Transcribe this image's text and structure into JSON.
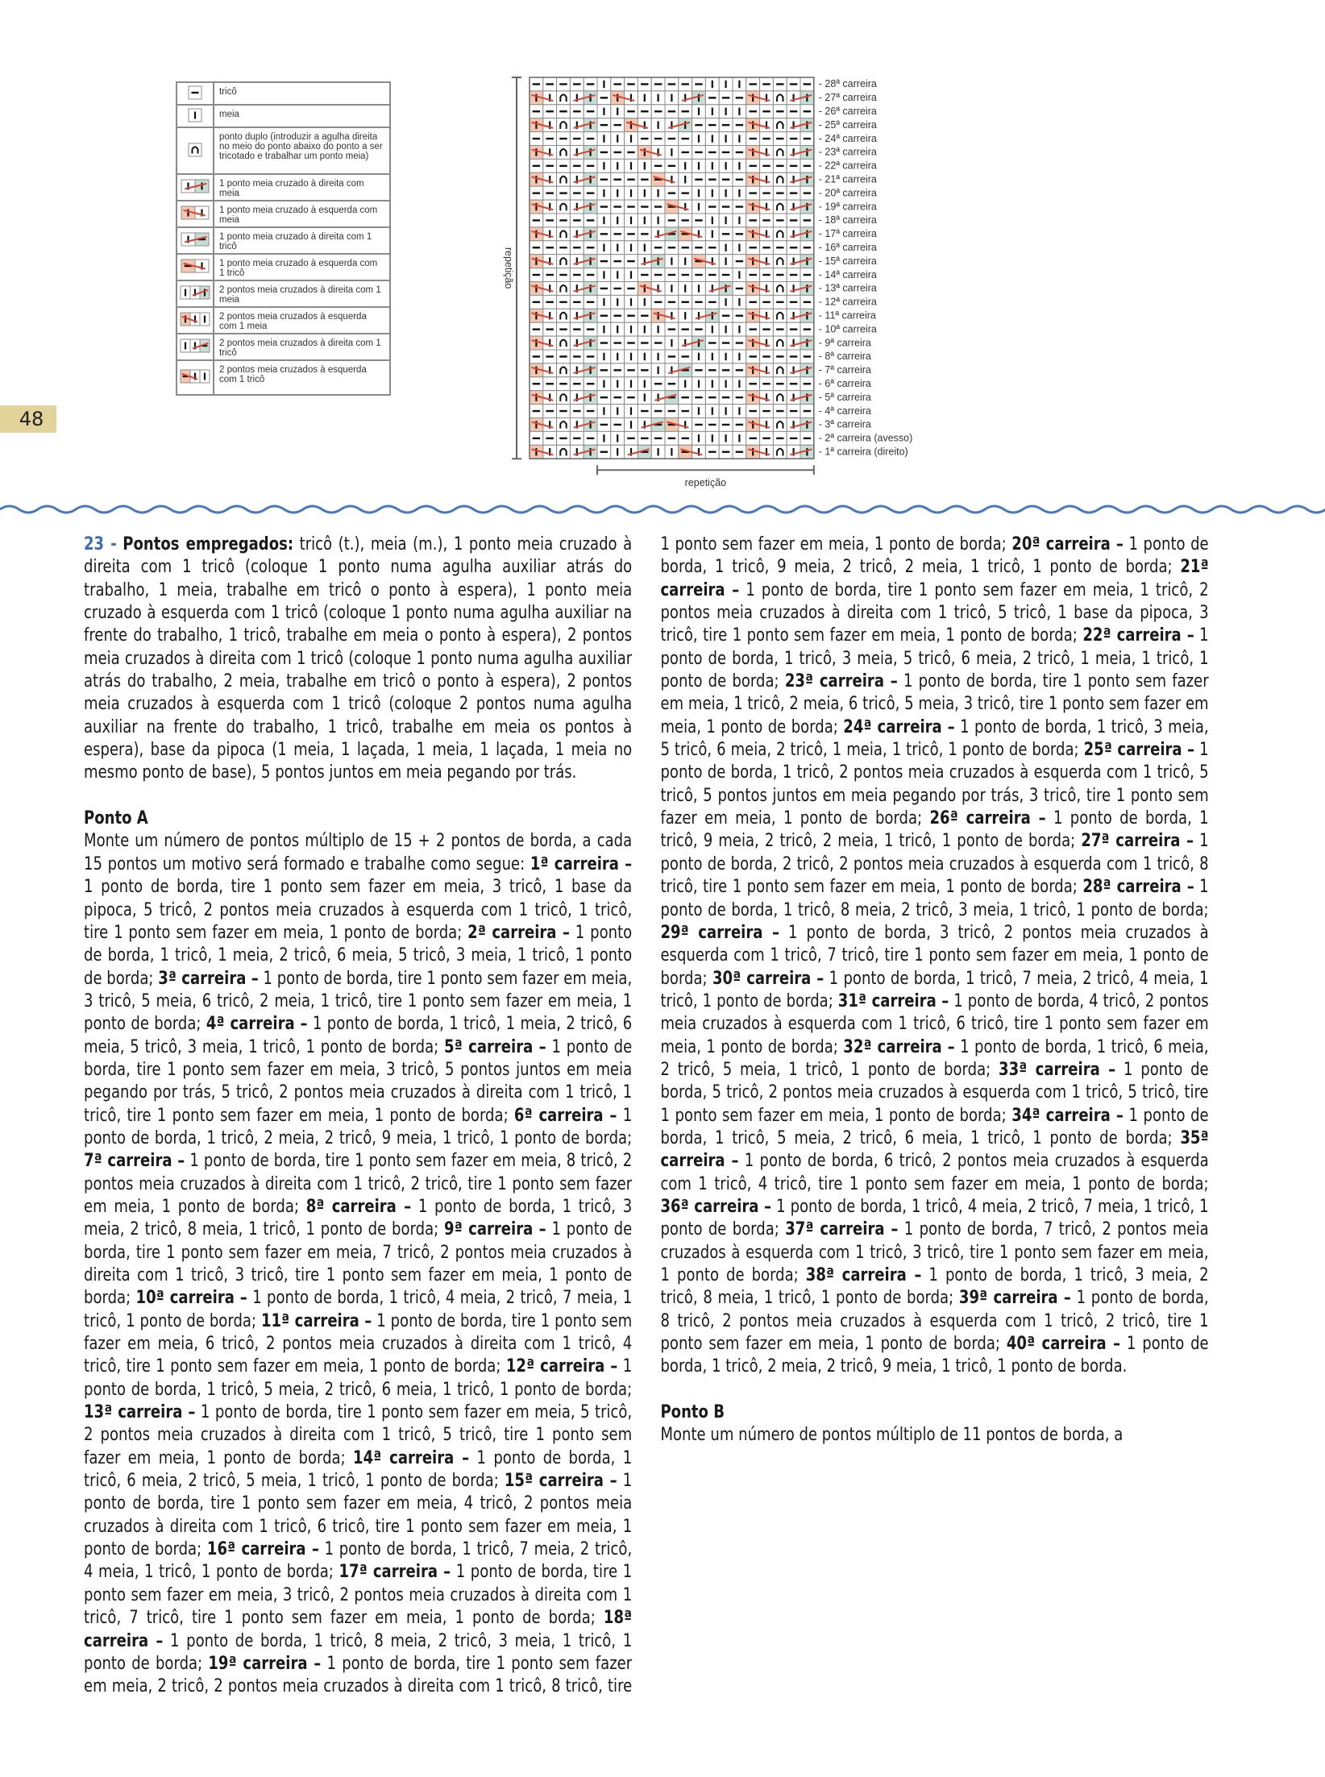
{
  "page_number": "48",
  "colors": {
    "accent_blue": "#3d6db3",
    "page_tab": "#e2d39a",
    "wave": "#4a78c0",
    "cross_pink": "#f4c7b1",
    "cross_green": "#c6ddd6",
    "cross_line": "#d9432f"
  },
  "legend": [
    {
      "icon": [
        "-"
      ],
      "label": "tricô"
    },
    {
      "icon": [
        "|"
      ],
      "label": "meia"
    },
    {
      "icon": [
        "n"
      ],
      "label": "ponto duplo (introduzir a agulha direita no meio do ponto abaixo do ponto a ser tricotado e trabalhar um ponto meia)"
    },
    {
      "icon": [
        "x",
        "g"
      ],
      "label": "1 ponto meia cruzado à direita com meia"
    },
    {
      "icon": [
        "p",
        "x"
      ],
      "label": "1 ponto meia cruzado à esquerda com meia"
    },
    {
      "icon": [
        "x",
        "G"
      ],
      "label": "1 ponto meia cruzado à direita com 1 tricô"
    },
    {
      "icon": [
        "P",
        "x"
      ],
      "label": "1 ponto meia cruzado à esquerda com 1 tricô"
    },
    {
      "icon": [
        "x",
        "x",
        "g"
      ],
      "label": "2 pontos meia cruzados à direita com 1 meia"
    },
    {
      "icon": [
        "p",
        "x",
        "x"
      ],
      "label": "2 pontos meia cruzados à esquerda com 1 meia"
    },
    {
      "icon": [
        "x",
        "x",
        "G"
      ],
      "label": "2 pontos meia cruzados à direita com 1 tricô"
    },
    {
      "icon": [
        "P",
        "x",
        "x"
      ],
      "label": "2 pontos meia cruzados à esquerda com 1 tricô"
    }
  ],
  "chart": {
    "side_label": "repetição",
    "bottom_label": "repetição",
    "repeat_columns": [
      6,
      21
    ],
    "rows": [
      {
        "label": "- 28ª carreira",
        "cells": "-----|-------|||-----"
      },
      {
        "label": "- 27ª carreira",
        "cells": "pxnxg-pxx||xg---pxnxg"
      },
      {
        "label": "- 26ª carreira",
        "cells": "-----||-----||||-----"
      },
      {
        "label": "- 25ª carreira",
        "cells": "pxnxg--pxxxg----pxnxg"
      },
      {
        "label": "- 24ª carreira",
        "cells": "-----|||----||||-----"
      },
      {
        "label": "- 23ª carreira",
        "cells": "pxnxg---pxx-----pxnxg"
      },
      {
        "label": "- 22ª carreira",
        "cells": "-----||||--|||||-----"
      },
      {
        "label": "- 21ª carreira",
        "cells": "pxnxg----Pxx----pxnxg"
      },
      {
        "label": "- 20ª carreira",
        "cells": "-----|||||--||||-----"
      },
      {
        "label": "- 19ª carreira",
        "cells": "pxnxg-----Pxx---pxnxg"
      },
      {
        "label": "- 18ª carreira",
        "cells": "-----|||||---|||-----"
      },
      {
        "label": "- 17ª carreira",
        "cells": "pxnxg----xGPxx--pxnxg"
      },
      {
        "label": "- 16ª carreira",
        "cells": "-----||||-----||-----"
      },
      {
        "label": "- 15ª carreira",
        "cells": "pxnxg---xg||Pxx-pxnxg"
      },
      {
        "label": "- 14ª carreira",
        "cells": "-----|||-------|-----"
      },
      {
        "label": "- 13ª carreira",
        "cells": "pxnxg---px||xxg-pxnxg"
      },
      {
        "label": "- 12ª carreira",
        "cells": "-----||||-----||-----"
      },
      {
        "label": "- 11ª carreira",
        "cells": "pxnxg----pxxxg--pxnxg"
      },
      {
        "label": "- 10ª carreira",
        "cells": "-----|||||---|||-----"
      },
      {
        "label": "- 9ª carreira",
        "cells": "pxnxg-----xxg---pxnxg"
      },
      {
        "label": "- 8ª carreira",
        "cells": "-----|||||--||||-----"
      },
      {
        "label": "- 7ª carreira",
        "cells": "pxnxg----xxG----pxnxg"
      },
      {
        "label": "- 6ª carreira",
        "cells": "-----||||--|||||-----"
      },
      {
        "label": "- 5ª carreira",
        "cells": "pxnxg---xxG-----pxnxg"
      },
      {
        "label": "- 4ª carreira",
        "cells": "-----|||----||||-----"
      },
      {
        "label": "- 3ª carreira",
        "cells": "pxnxg--xxGPx----pxnxg"
      },
      {
        "label": "- 2ª carreira (avesso)",
        "cells": "-----||-----||||-----"
      },
      {
        "label": "- 1ª carreira (direito)",
        "cells": "pxnxg-xxG||Px---pxnxg"
      }
    ]
  },
  "intro": {
    "number": "23 -",
    "label": "Pontos empregados:",
    "text": " tricô (t.), meia (m.), 1 ponto meia cruzado à direita com 1 tricô (coloque 1 ponto numa agulha auxiliar atrás do trabalho, 1 meia, trabalhe em tricô o ponto à espera), 1 ponto meia cruzado à esquerda com 1 tricô (coloque 1 ponto numa agulha auxiliar na frente do trabalho, 1 tricô, trabalhe em meia o ponto à espera), 2 pontos meia cruzados à direita com 1 tricô (coloque 1 ponto numa agulha auxiliar atrás do trabalho, 2 meia, trabalhe em tricô o ponto à espera), 2 pontos meia cruzados à esquerda com 1 tricô (coloque 2 pontos numa agulha auxiliar na frente do trabalho, 1 tricô, trabalhe em meia os pontos à espera), base da pipoca (1 meia, 1 laçada, 1 meia, 1 laçada, 1 meia no mesmo ponto de base), 5 pontos juntos em meia pegando por trás."
  },
  "ponto_a": {
    "heading": "Ponto A",
    "intro": "Monte um número de pontos múltiplo de 15 + 2 pontos de borda, a cada 15 pontos um motivo será formado e trabalhe como segue:",
    "rows": [
      {
        "label": "1ª carreira –",
        "text": "1 ponto de borda, tire 1 ponto sem fazer em meia, 3 tricô, 1 base da pipoca, 5 tricô, 2 pontos meia cruzados à esquerda com 1 tricô, 1 tricô, tire 1 ponto sem fazer em meia, 1 ponto de borda;"
      },
      {
        "label": "2ª carreira –",
        "text": "1 ponto de borda, 1 tricô, 1 meia, 2 tricô, 6 meia, 5 tricô, 3 meia, 1 tricô, 1 ponto de borda;"
      },
      {
        "label": "3ª carreira –",
        "text": "1 ponto de borda, tire 1 ponto sem fazer em meia, 3 tricô, 5 meia, 6 tricô, 2 meia, 1 tricô, tire 1 ponto sem fazer em meia, 1 ponto de borda;"
      },
      {
        "label": "4ª carreira –",
        "text": "1 ponto de borda, 1 tricô, 1 meia, 2 tricô, 6 meia, 5 tricô, 3 meia, 1 tricô, 1 ponto de borda;"
      },
      {
        "label": "5ª carreira –",
        "text": "1 ponto de borda, tire 1 ponto sem fazer em meia, 3 tricô, 5 pontos juntos em meia pegando por trás, 5 tricô, 2 pontos meia cruzados à direita com 1 tricô, 1 tricô, tire 1 ponto sem fazer em meia, 1 ponto de borda;"
      },
      {
        "label": "6ª carreira –",
        "text": "1 ponto de borda, 1 tricô, 2 meia, 2 tricô, 9 meia, 1 tricô, 1 ponto de borda;"
      },
      {
        "label": "7ª carreira –",
        "text": "1 ponto de borda, tire 1 ponto sem fazer em meia, 8 tricô, 2 pontos meia cruzados à direita com 1 tricô, 2 tricô, tire 1 ponto sem fazer em meia, 1 ponto de borda;"
      },
      {
        "label": "8ª carreira –",
        "text": "1 ponto de borda, 1 tricô, 3 meia, 2 tricô, 8 meia, 1 tricô, 1 ponto de borda;"
      },
      {
        "label": "9ª carreira –",
        "text": "1 ponto de borda, tire 1 ponto sem fazer em meia, 7 tricô, 2 pontos meia cruzados à direita com 1 tricô, 3 tricô, tire 1 ponto sem fazer em meia, 1 ponto de borda;"
      },
      {
        "label": "10ª carreira –",
        "text": "1 ponto de borda, 1 tricô, 4 meia, 2 tricô, 7 meia, 1 tricô, 1 ponto de borda;"
      },
      {
        "label": "11ª carreira –",
        "text": "1 ponto de borda, tire 1 ponto sem fazer em meia, 6 tricô, 2 pontos meia cruzados à direita com 1 tricô, 4 tricô, tire 1 ponto sem fazer em meia, 1 ponto de borda;"
      },
      {
        "label": "12ª carreira –",
        "text": "1 ponto de borda, 1 tricô, 5 meia, 2 tricô, 6 meia, 1 tricô, 1 ponto de borda;"
      },
      {
        "label": "13ª carreira –",
        "text": "1 ponto de borda, tire 1 ponto sem fazer em meia, 5 tricô, 2 pontos meia cruzados à direita com 1 tricô, 5 tricô, tire 1 ponto sem fazer em meia, 1 ponto de borda;"
      },
      {
        "label": "14ª carreira –",
        "text": "1 ponto de borda, 1 tricô, 6 meia, 2 tricô, 5 meia, 1 tricô, 1 ponto de borda;"
      },
      {
        "label": "15ª carreira –",
        "text": "1 ponto de borda, tire 1 ponto sem fazer em meia, 4 tricô, 2 pontos meia cruzados à direita com 1 tricô, 6 tricô, tire 1 ponto sem fazer em meia, 1 ponto de borda;"
      },
      {
        "label": "16ª carreira –",
        "text": "1 ponto de borda, 1 tricô, 7 meia, 2 tricô, 4 meia, 1 tricô, 1 ponto de borda;"
      },
      {
        "label": "17ª carreira –",
        "text": "1 ponto de borda, tire 1 ponto sem fazer em meia, 3 tricô, 2 pontos meia cruzados à direita com 1 tricô, 7 tricô, tire 1 ponto sem fazer em meia, 1 ponto de borda;"
      },
      {
        "label": "18ª carreira –",
        "text": "1 ponto de borda, 1 tricô, 8 meia, 2 tricô, 3 meia, 1 tricô, 1 ponto de borda;"
      },
      {
        "label": "19ª carreira –",
        "text": "1 ponto de borda, tire 1 ponto sem fazer em meia, 2 tricô, 2 pontos meia cruzados à direita com 1 tricô, 8 tricô, tire 1 ponto sem fazer em meia, 1 ponto de borda;"
      },
      {
        "label": "20ª carreira –",
        "text": "1 ponto de borda, 1 tricô, 9 meia, 2 tricô, 2 meia, 1 tricô, 1 ponto de borda;"
      },
      {
        "label": "21ª carreira –",
        "text": "1 ponto de borda, tire 1 ponto sem fazer em meia, 1 tricô, 2 pontos meia cruzados à direita com 1 tricô, 5 tricô, 1 base da pipoca, 3 tricô, tire 1 ponto sem fazer em meia, 1 ponto de borda;"
      },
      {
        "label": "22ª carreira –",
        "text": "1 ponto de borda, 1 tricô, 3 meia, 5 tricô, 6 meia, 2 tricô, 1 meia, 1 tricô, 1 ponto de borda;"
      },
      {
        "label": "23ª carreira –",
        "text": "1 ponto de borda, tire 1 ponto sem fazer em meia, 1 tricô, 2 meia, 6 tricô, 5 meia, 3 tricô, tire 1 ponto sem fazer em meia, 1 ponto de borda;"
      },
      {
        "label": "24ª carreira –",
        "text": "1 ponto de borda, 1 tricô, 3 meia, 5 tricô, 6 meia, 2 tricô, 1 meia, 1 tricô, 1 ponto de borda;"
      },
      {
        "label": "25ª carreira –",
        "text": "1 ponto de borda, 1 tricô, 2 pontos meia cruzados à esquerda com 1 tricô, 5 tricô, 5 pontos juntos em meia pegando por trás, 3 tricô, tire 1 ponto sem fazer em meia, 1 ponto de borda;"
      },
      {
        "label": "26ª carreira –",
        "text": "1 ponto de borda, 1 tricô, 9 meia, 2 tricô, 2 meia, 1 tricô, 1 ponto de borda;"
      },
      {
        "label": "27ª carreira –",
        "text": "1 ponto de borda, 2 tricô, 2 pontos meia cruzados à esquerda com 1 tricô, 8 tricô, tire 1 ponto sem fazer em meia, 1 ponto de borda;"
      },
      {
        "label": "28ª carreira –",
        "text": "1 ponto de borda, 1 tricô, 8 meia, 2 tricô, 3 meia, 1 tricô, 1 ponto de borda;"
      },
      {
        "label": "29ª carreira –",
        "text": "1 ponto de borda, 3 tricô, 2 pontos meia cruzados à esquerda com 1 tricô, 7 tricô, tire 1 ponto sem fazer em meia, 1 ponto de borda;"
      },
      {
        "label": "30ª carreira –",
        "text": "1 ponto de borda, 1 tricô, 7 meia, 2 tricô, 4 meia, 1 tricô, 1 ponto de borda;"
      },
      {
        "label": "31ª carreira –",
        "text": "1 ponto de borda, 4 tricô, 2 pontos meia cruzados à esquerda com 1 tricô, 6 tricô, tire 1 ponto sem fazer em meia, 1 ponto de borda;"
      },
      {
        "label": "32ª carreira –",
        "text": "1 ponto de borda, 1 tricô, 6 meia, 2 tricô, 5 meia, 1 tricô, 1 ponto de borda;"
      },
      {
        "label": "33ª carreira –",
        "text": "1 ponto de borda, 5 tricô, 2 pontos meia cruzados à esquerda com 1 tricô, 5 tricô, tire 1 ponto sem fazer em meia, 1 ponto de borda;"
      },
      {
        "label": "34ª carreira –",
        "text": "1 ponto de borda, 1 tricô, 5 meia, 2 tricô, 6 meia, 1 tricô, 1 ponto de borda;"
      },
      {
        "label": "35ª carreira –",
        "text": "1 ponto de borda, 6 tricô, 2 pontos meia cruzados à esquerda com 1 tricô, 4 tricô, tire 1 ponto sem fazer em meia, 1 ponto de borda;"
      },
      {
        "label": "36ª carreira –",
        "text": "1 ponto de borda, 1 tricô, 4 meia, 2 tricô, 7 meia, 1 tricô, 1 ponto de borda;"
      },
      {
        "label": "37ª carreira –",
        "text": "1 ponto de borda, 7 tricô, 2 pontos meia cruzados à esquerda com 1 tricô, 3 tricô, tire 1 ponto sem fazer em meia, 1 ponto de borda;"
      },
      {
        "label": "38ª carreira –",
        "text": "1 ponto de borda, 1 tricô, 3 meia, 2 tricô, 8 meia, 1 tricô, 1 ponto de borda;"
      },
      {
        "label": "39ª carreira –",
        "text": "1 ponto de borda, 8 tricô, 2 pontos meia cruzados à esquerda com 1 tricô, 2 tricô, tire 1 ponto sem fazer em meia, 1 ponto de borda;"
      },
      {
        "label": "40ª carreira –",
        "text": "1 ponto de borda, 1 tricô, 2 meia, 2 tricô, 9 meia, 1 tricô, 1 ponto de borda."
      }
    ]
  },
  "ponto_b": {
    "heading": "Ponto B",
    "text": "Monte um número de pontos múltiplo de 11 pontos de borda, a"
  }
}
